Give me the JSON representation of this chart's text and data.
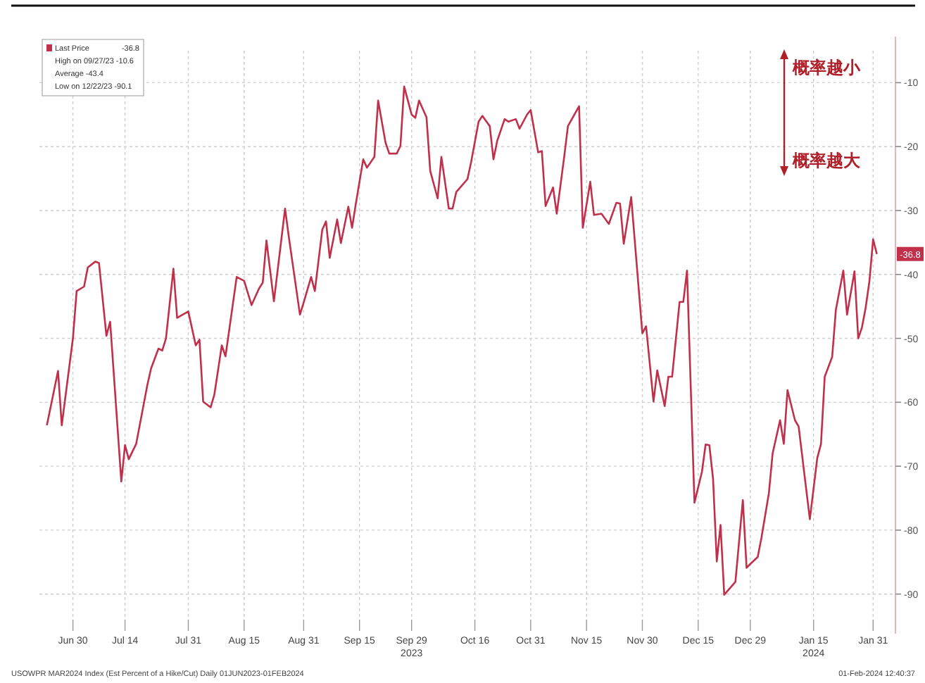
{
  "chart_data": {
    "type": "line",
    "legend": "top left",
    "grid": true,
    "line_style": "solid",
    "xlim": [
      "2023-06-21",
      "2024-02-06"
    ],
    "ylim": [
      -94,
      -5
    ],
    "xticks": [
      {
        "value": "2023-06-30",
        "label": "Jun 30"
      },
      {
        "value": "2023-07-14",
        "label": "Jul 14"
      },
      {
        "value": "2023-07-31",
        "label": "Jul 31"
      },
      {
        "value": "2023-08-15",
        "label": "Aug 15"
      },
      {
        "value": "2023-08-31",
        "label": "Aug 31"
      },
      {
        "value": "2023-09-15",
        "label": "Sep 15"
      },
      {
        "value": "2023-09-29",
        "label": "Sep 29\n2023"
      },
      {
        "value": "2023-10-16",
        "label": "Oct 16"
      },
      {
        "value": "2023-10-31",
        "label": "Oct 31"
      },
      {
        "value": "2023-11-15",
        "label": "Nov 15"
      },
      {
        "value": "2023-11-30",
        "label": "Nov 30"
      },
      {
        "value": "2023-12-15",
        "label": "Dec 15"
      },
      {
        "value": "2023-12-29",
        "label": "Dec 29"
      },
      {
        "value": "2024-01-15",
        "label": "Jan 15\n2024"
      },
      {
        "value": "2024-01-31",
        "label": "Jan 31"
      }
    ],
    "yticks": [
      -10,
      -20,
      -30,
      -40,
      -50,
      -60,
      -70,
      -80,
      -90
    ],
    "x": [
      "2023-06-23",
      "2023-06-26",
      "2023-06-27",
      "2023-06-30",
      "2023-07-01",
      "2023-07-03",
      "2023-07-04",
      "2023-07-06",
      "2023-07-07",
      "2023-07-09",
      "2023-07-10",
      "2023-07-13",
      "2023-07-14",
      "2023-07-15",
      "2023-07-17",
      "2023-07-20",
      "2023-07-21",
      "2023-07-23",
      "2023-07-24",
      "2023-07-25",
      "2023-07-27",
      "2023-07-28",
      "2023-07-31",
      "2023-08-02",
      "2023-08-03",
      "2023-08-04",
      "2023-08-06",
      "2023-08-07",
      "2023-08-09",
      "2023-08-10",
      "2023-08-13",
      "2023-08-15",
      "2023-08-17",
      "2023-08-19",
      "2023-08-20",
      "2023-08-21",
      "2023-08-23",
      "2023-08-26",
      "2023-08-27",
      "2023-08-30",
      "2023-08-31",
      "2023-09-02",
      "2023-09-03",
      "2023-09-05",
      "2023-09-06",
      "2023-09-07",
      "2023-09-09",
      "2023-09-10",
      "2023-09-12",
      "2023-09-13",
      "2023-09-14",
      "2023-09-16",
      "2023-09-17",
      "2023-09-19",
      "2023-09-20",
      "2023-09-22",
      "2023-09-23",
      "2023-09-25",
      "2023-09-26",
      "2023-09-27",
      "2023-09-29",
      "2023-09-30",
      "2023-10-01",
      "2023-10-03",
      "2023-10-04",
      "2023-10-06",
      "2023-10-07",
      "2023-10-09",
      "2023-10-10",
      "2023-10-11",
      "2023-10-14",
      "2023-10-15",
      "2023-10-17",
      "2023-10-18",
      "2023-10-20",
      "2023-10-21",
      "2023-10-22",
      "2023-10-24",
      "2023-10-25",
      "2023-10-27",
      "2023-10-28",
      "2023-10-30",
      "2023-10-31",
      "2023-11-02",
      "2023-11-03",
      "2023-11-04",
      "2023-11-06",
      "2023-11-07",
      "2023-11-09",
      "2023-11-10",
      "2023-11-13",
      "2023-11-14",
      "2023-11-16",
      "2023-11-17",
      "2023-11-19",
      "2023-11-21",
      "2023-11-23",
      "2023-11-24",
      "2023-11-25",
      "2023-11-27",
      "2023-11-30",
      "2023-12-01",
      "2023-12-03",
      "2023-12-04",
      "2023-12-06",
      "2023-12-07",
      "2023-12-08",
      "2023-12-10",
      "2023-12-11",
      "2023-12-12",
      "2023-12-14",
      "2023-12-16",
      "2023-12-17",
      "2023-12-18",
      "2023-12-19",
      "2023-12-20",
      "2023-12-21",
      "2023-12-22",
      "2023-12-25",
      "2023-12-27",
      "2023-12-28",
      "2023-12-29",
      "2023-12-31",
      "2024-01-01",
      "2024-01-03",
      "2024-01-04",
      "2024-01-06",
      "2024-01-07",
      "2024-01-08",
      "2024-01-10",
      "2024-01-11",
      "2024-01-13",
      "2024-01-14",
      "2024-01-16",
      "2024-01-17",
      "2024-01-18",
      "2024-01-20",
      "2024-01-21",
      "2024-01-23",
      "2024-01-24",
      "2024-01-26",
      "2024-01-27",
      "2024-01-28",
      "2024-01-29",
      "2024-01-30",
      "2024-01-31",
      "2024-02-01"
    ],
    "series": [
      {
        "name": "Last Price",
        "color": "#c0304a",
        "values": [
          -63.6,
          -55.1,
          -63.6,
          -50.0,
          -42.6,
          -41.9,
          -38.9,
          -38.0,
          -38.2,
          -49.6,
          -47.4,
          -72.4,
          -66.7,
          -68.9,
          -66.5,
          -57.3,
          -54.7,
          -51.6,
          -51.9,
          -50.0,
          -39.1,
          -46.8,
          -45.8,
          -51.1,
          -50.2,
          -59.9,
          -60.8,
          -58.8,
          -51.1,
          -52.8,
          -40.4,
          -41.0,
          -44.8,
          -42.2,
          -41.3,
          -34.7,
          -44.2,
          -29.7,
          -34.1,
          -46.3,
          -44.4,
          -40.4,
          -42.6,
          -33.0,
          -31.7,
          -37.4,
          -31.4,
          -35.1,
          -29.4,
          -32.7,
          -29.0,
          -22.0,
          -23.3,
          -21.6,
          -12.8,
          -19.4,
          -21.1,
          -21.1,
          -19.9,
          -10.6,
          -15.0,
          -15.5,
          -12.8,
          -15.4,
          -23.8,
          -28.1,
          -21.6,
          -29.7,
          -29.7,
          -27.1,
          -25.1,
          -22.4,
          -16.1,
          -15.2,
          -16.8,
          -22.0,
          -19.1,
          -15.7,
          -16.1,
          -15.7,
          -17.2,
          -15.0,
          -14.3,
          -20.9,
          -20.7,
          -29.3,
          -26.4,
          -30.5,
          -21.6,
          -16.8,
          -13.7,
          -32.7,
          -25.5,
          -30.7,
          -30.5,
          -32.1,
          -28.8,
          -28.9,
          -35.2,
          -27.9,
          -49.2,
          -48.1,
          -59.9,
          -55.0,
          -60.6,
          -56.0,
          -56.0,
          -44.3,
          -44.3,
          -39.4,
          -75.7,
          -70.9,
          -66.6,
          -66.7,
          -72.0,
          -84.9,
          -79.2,
          -90.1,
          -88.1,
          -75.3,
          -85.9,
          -85.3,
          -84.2,
          -81.2,
          -74.2,
          -68.0,
          -62.8,
          -66.5,
          -58.1,
          -62.8,
          -63.8,
          -73.5,
          -78.3,
          -68.7,
          -66.5,
          -56.0,
          -52.9,
          -45.5,
          -39.4,
          -46.3,
          -39.5,
          -50.0,
          -48.3,
          -45.2,
          -41.1,
          -34.5,
          -36.8
        ]
      }
    ],
    "annotations": [
      "概率越小",
      "概率越大",
      "High on 09/27/23 -10.6",
      "Average -43.4",
      "Low on 12/22/23 -90.1",
      {
        "text": "-36.8",
        "x": "2024-02-01",
        "y": -36.8
      },
      "USOWPR MAR2024 Index (Est Percent of a Hike/Cut)  Daily 01JUN2023-01FEB2024",
      "01-Feb-2024 12:40:37"
    ]
  }
}
